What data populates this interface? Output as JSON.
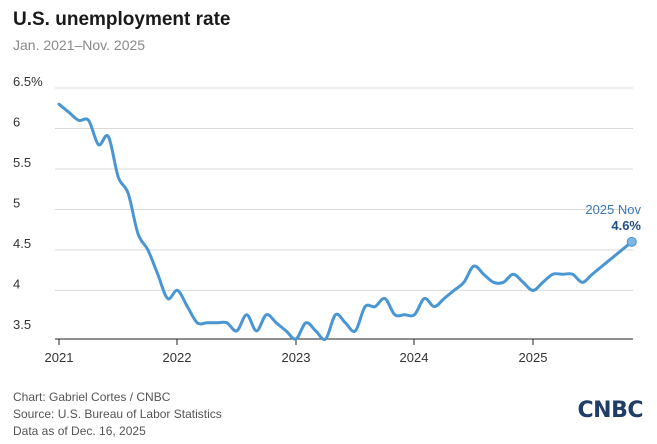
{
  "header": {
    "title": "U.S. unemployment rate",
    "subtitle": "Jan. 2021–Nov. 2025"
  },
  "chart_data": {
    "type": "line",
    "title": "U.S. unemployment rate",
    "subtitle": "Jan. 2021–Nov. 2025",
    "ylim": [
      3.4,
      6.5
    ],
    "yticks": [
      3.5,
      4,
      4.5,
      5,
      5.5,
      6,
      6.5
    ],
    "ytick_labels": [
      "3.5",
      "4",
      "4.5",
      "5",
      "5.5",
      "6",
      "6.5%"
    ],
    "xticks": [
      "2021",
      "2022",
      "2023",
      "2024",
      "2025"
    ],
    "grid": true,
    "line_color": "#4a96d2",
    "series": [
      {
        "x": [
          "2021-01",
          "2021-02",
          "2021-03",
          "2021-04",
          "2021-05",
          "2021-06",
          "2021-07",
          "2021-08",
          "2021-09",
          "2021-10",
          "2021-11",
          "2021-12",
          "2022-01",
          "2022-02",
          "2022-03",
          "2022-04",
          "2022-05",
          "2022-06",
          "2022-07",
          "2022-08",
          "2022-09",
          "2022-10",
          "2022-11",
          "2022-12",
          "2023-01",
          "2023-02",
          "2023-03",
          "2023-04",
          "2023-05",
          "2023-06",
          "2023-07",
          "2023-08",
          "2023-09",
          "2023-10",
          "2023-11",
          "2023-12",
          "2024-01",
          "2024-02",
          "2024-03",
          "2024-04",
          "2024-05",
          "2024-06",
          "2024-07",
          "2024-08",
          "2024-09",
          "2024-10",
          "2024-11",
          "2024-12",
          "2025-01",
          "2025-02",
          "2025-03",
          "2025-04",
          "2025-05",
          "2025-06",
          "2025-07",
          "2025-08",
          "2025-09",
          "2025-10",
          "2025-11"
        ],
        "values": [
          6.3,
          6.2,
          6.1,
          6.1,
          5.8,
          5.9,
          5.4,
          5.2,
          4.7,
          4.5,
          4.2,
          3.9,
          4.0,
          3.8,
          3.6,
          3.6,
          3.6,
          3.6,
          3.5,
          3.7,
          3.5,
          3.7,
          3.6,
          3.5,
          3.4,
          3.6,
          3.5,
          3.4,
          3.7,
          3.6,
          3.5,
          3.8,
          3.8,
          3.9,
          3.7,
          3.7,
          3.7,
          3.9,
          3.8,
          3.9,
          4.0,
          4.1,
          4.3,
          4.2,
          4.1,
          4.1,
          4.2,
          4.1,
          4.0,
          4.1,
          4.2,
          4.2,
          4.2,
          4.1,
          4.2,
          4.3,
          4.4,
          4.5,
          4.6
        ]
      }
    ],
    "annotation": {
      "x": "2025-11",
      "label": "2025 Nov",
      "value_text": "4.6%",
      "y": 4.6
    }
  },
  "footer": {
    "line1": "Chart: Gabriel Cortes / CNBC",
    "line2": "Source: U.S. Bureau of Labor Statistics",
    "line3": "Data as of Dec. 16, 2025"
  },
  "logo": {
    "text": "CNBC"
  }
}
